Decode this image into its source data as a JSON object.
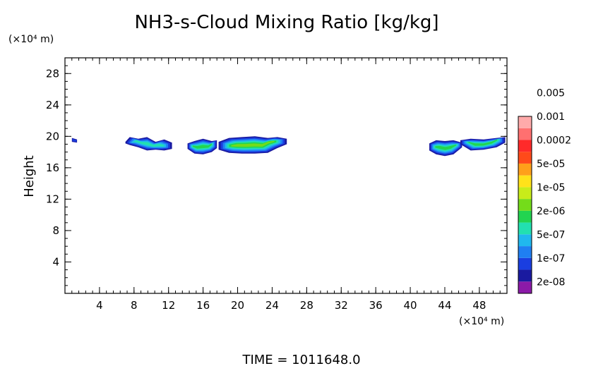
{
  "chart_data": {
    "type": "heatmap",
    "title": "NH3-s-Cloud Mixing Ratio [kg/kg]",
    "xlabel": "",
    "ylabel": "Height",
    "x_unit": "(×10⁴ m)",
    "y_unit": "(×10⁴ m)",
    "xlim": [
      0,
      51.2
    ],
    "ylim": [
      0,
      30
    ],
    "x_ticks": [
      "4",
      "8",
      "12",
      "16",
      "20",
      "24",
      "28",
      "32",
      "36",
      "40",
      "44",
      "48"
    ],
    "y_ticks": [
      "4",
      "8",
      "12",
      "16",
      "20",
      "24",
      "28"
    ],
    "footer": "TIME =  1011648.0",
    "colorbar": {
      "levels": [
        "2e-08",
        "1e-07",
        "5e-07",
        "2e-06",
        "1e-05",
        "5e-05",
        "0.0002",
        "0.001",
        "0.005"
      ],
      "colors": [
        "#8b1aa8",
        "#1a1aa0",
        "#1a3ee0",
        "#1f7ff2",
        "#20b8ee",
        "#22e0b0",
        "#22d450",
        "#74dc1a",
        "#c8ec1a",
        "#ffe21a",
        "#ffa01a",
        "#ff4a1a",
        "#ff2a2a",
        "#ff7070",
        "#ffaaaa"
      ]
    },
    "cloud_cells": [
      {
        "x": [
          0.8,
          1.4
        ],
        "y_top": [
          19.8,
          19.6
        ],
        "y_bot": [
          19.3,
          19.2
        ],
        "level": 1
      },
      {
        "x": [
          7.0,
          7.5,
          8.5,
          9.5,
          10.5,
          11.5,
          12.4
        ],
        "y_top": [
          19.3,
          19.9,
          19.7,
          19.9,
          19.3,
          19.6,
          19.2
        ],
        "y_bot": [
          19.1,
          18.9,
          18.6,
          18.2,
          18.3,
          18.2,
          18.4
        ],
        "level": 4
      },
      {
        "x": [
          14.2,
          15.0,
          16.0,
          17.0,
          17.6
        ],
        "y_top": [
          19.1,
          19.4,
          19.7,
          19.4,
          19.5
        ],
        "y_bot": [
          18.4,
          17.8,
          17.7,
          18.0,
          18.5
        ],
        "level": 5
      },
      {
        "x": [
          17.8,
          19.0,
          20.5,
          22.0,
          23.5,
          24.6,
          25.7
        ],
        "y_top": [
          19.3,
          19.8,
          19.9,
          20.0,
          19.8,
          19.9,
          19.7
        ],
        "y_bot": [
          18.3,
          17.9,
          17.8,
          17.8,
          17.9,
          18.5,
          19.0
        ],
        "level": 6
      },
      {
        "x": [
          42.2,
          43.0,
          44.0,
          45.0,
          46.0
        ],
        "y_top": [
          19.1,
          19.5,
          19.4,
          19.5,
          19.2
        ],
        "y_bot": [
          18.2,
          17.7,
          17.5,
          17.7,
          18.6
        ],
        "level": 5
      },
      {
        "x": [
          45.8,
          47.0,
          48.5,
          50.0,
          51.0
        ],
        "y_top": [
          19.5,
          19.7,
          19.6,
          19.8,
          19.9
        ],
        "y_bot": [
          19.0,
          18.2,
          18.3,
          18.6,
          19.2
        ],
        "level": 5
      }
    ]
  }
}
